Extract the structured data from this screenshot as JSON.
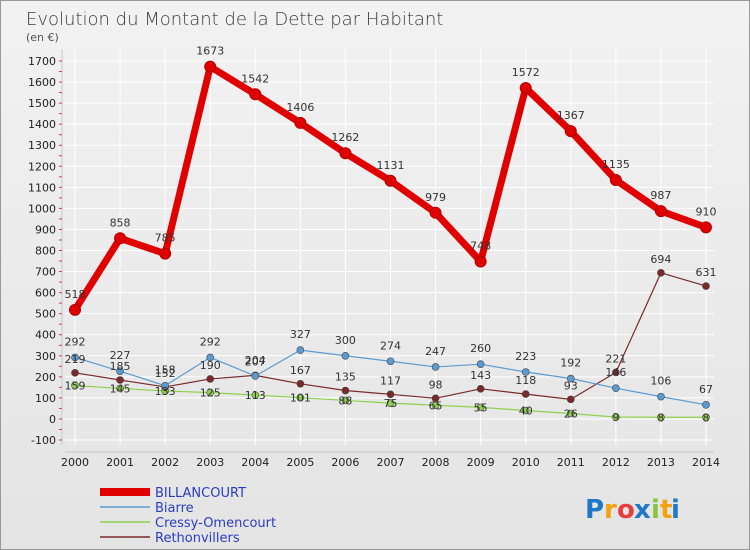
{
  "chart_data": {
    "type": "line",
    "title": "Evolution du Montant de la Dette par Habitant",
    "subtitle": "(en €)",
    "x": [
      "2000",
      "2001",
      "2002",
      "2003",
      "2004",
      "2005",
      "2006",
      "2007",
      "2008",
      "2009",
      "2010",
      "2011",
      "2012",
      "2013",
      "2014"
    ],
    "ylim": [
      -100,
      1700
    ],
    "yticks": [
      -100,
      0,
      100,
      200,
      300,
      400,
      500,
      600,
      700,
      800,
      900,
      1000,
      1100,
      1200,
      1300,
      1400,
      1500,
      1600,
      1700
    ],
    "grid": true,
    "legend_position": "bottom-left",
    "series": [
      {
        "name": "BILLANCOURT",
        "color": "#e00000",
        "values": [
          518,
          858,
          785,
          1673,
          1542,
          1406,
          1262,
          1131,
          979,
          748,
          1572,
          1367,
          1135,
          987,
          910
        ]
      },
      {
        "name": "Biarre",
        "color": "#5b9bd0",
        "values": [
          292,
          227,
          158,
          292,
          204,
          327,
          300,
          274,
          247,
          260,
          223,
          192,
          146,
          106,
          67
        ]
      },
      {
        "name": "Cressy-Omencourt",
        "color": "#8fd14f",
        "values": [
          159,
          145,
          133,
          125,
          113,
          101,
          88,
          75,
          65,
          55,
          40,
          26,
          9,
          8,
          8
        ]
      },
      {
        "name": "Rethonvillers",
        "color": "#7a2a2a",
        "values": [
          219,
          185,
          152,
          190,
          207,
          167,
          135,
          117,
          98,
          143,
          118,
          93,
          221,
          694,
          631
        ]
      }
    ]
  },
  "logo": {
    "text": "Proxiti",
    "letters": [
      "P",
      "r",
      "o",
      "x",
      "i",
      "t",
      "i"
    ],
    "colors": [
      "#1f78c8",
      "#f2a20c",
      "#e83d3d",
      "#1f78c8",
      "#8bc43f",
      "#f2a20c",
      "#1f78c8"
    ]
  }
}
